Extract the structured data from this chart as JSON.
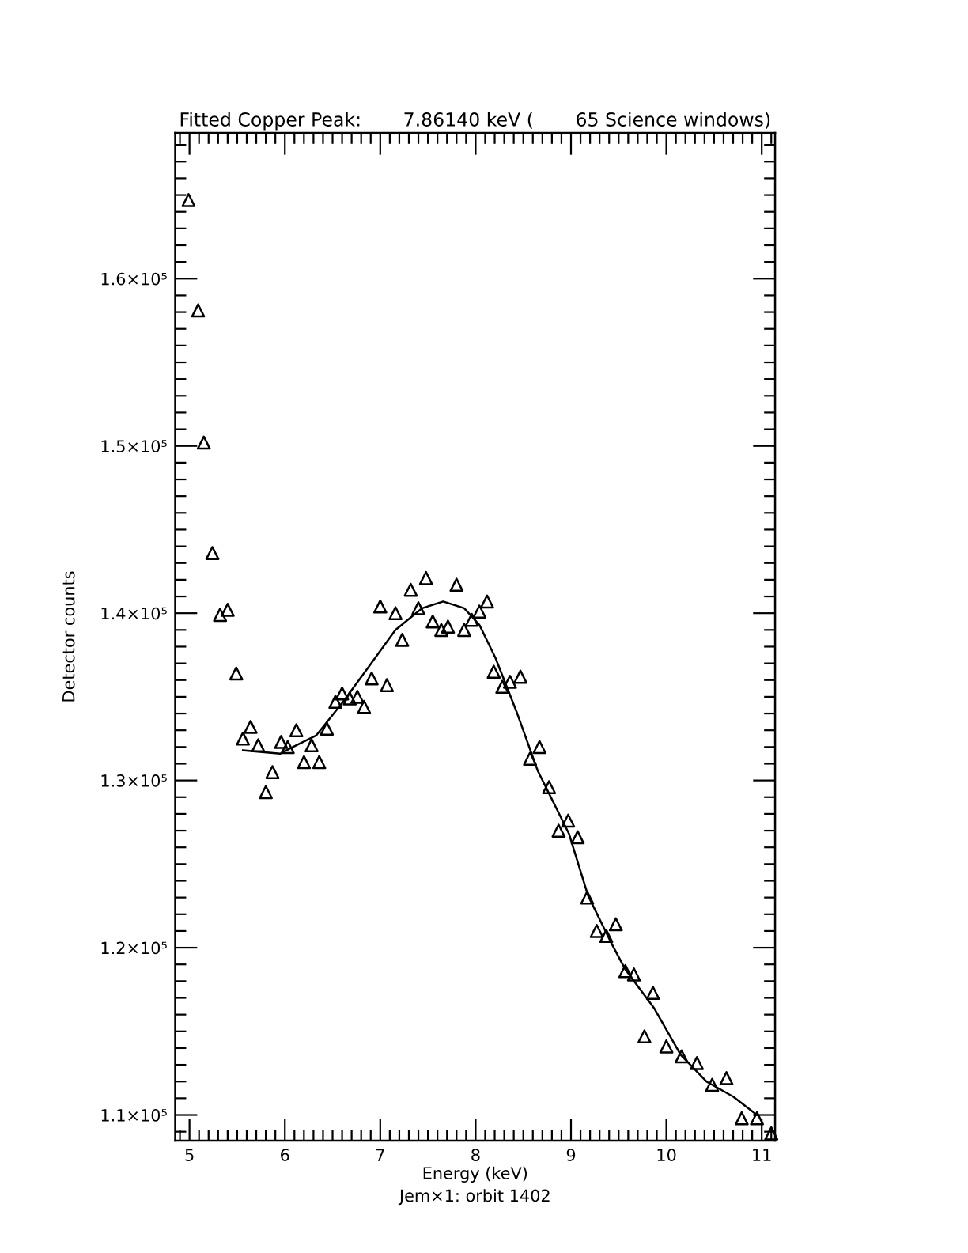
{
  "chart_data": {
    "type": "scatter",
    "title": "Fitted Copper Peak:       7.86140 keV (       65 Science windows)",
    "xlabel": "Energy (keV)",
    "ylabel": "Detector counts",
    "annotations": [
      "Jem×1: orbit 1402"
    ],
    "xlim": [
      4.85,
      11.14
    ],
    "xticks": [
      5,
      6,
      7,
      8,
      9,
      10,
      11
    ],
    "ylim": [
      108460,
      168720
    ],
    "yticks": [
      {
        "value": 110000,
        "label": "1.1×10⁵"
      },
      {
        "value": 120000,
        "label": "1.2×10⁵"
      },
      {
        "value": 130000,
        "label": "1.3×10⁵"
      },
      {
        "value": 140000,
        "label": "1.4×10⁵"
      },
      {
        "value": 150000,
        "label": "1.5×10⁵"
      },
      {
        "value": 160000,
        "label": "1.6×10⁵"
      }
    ],
    "tick_labels": "xy",
    "grid": false,
    "legend": false,
    "series": [
      {
        "marker": "triangle",
        "color": "#000000",
        "x": [
          4.99,
          5.09,
          5.15,
          5.24,
          5.32,
          5.4,
          5.49,
          5.56,
          5.64,
          5.72,
          5.8,
          5.87,
          5.96,
          6.03,
          6.12,
          6.2,
          6.28,
          6.36,
          6.44,
          6.53,
          6.6,
          6.68,
          6.76,
          6.83,
          6.91,
          7.0,
          7.07,
          7.16,
          7.23,
          7.32,
          7.4,
          7.48,
          7.55,
          7.64,
          7.71,
          7.8,
          7.88,
          7.96,
          8.04,
          8.12,
          8.19,
          8.28,
          8.36,
          8.47,
          8.57,
          8.67,
          8.77,
          8.87,
          8.97,
          9.07,
          9.17,
          9.27,
          9.37,
          9.47,
          9.57,
          9.66,
          9.77,
          9.86,
          10.0,
          10.16,
          10.32,
          10.48,
          10.63,
          10.79,
          10.95,
          11.1
        ],
        "values": [
          164700,
          158100,
          150200,
          143600,
          139900,
          140200,
          136400,
          132500,
          133200,
          132100,
          129300,
          130500,
          132300,
          132000,
          133000,
          131100,
          132100,
          131100,
          133100,
          134700,
          135200,
          134900,
          135000,
          134400,
          136100,
          140400,
          135700,
          140000,
          138400,
          141400,
          140300,
          142100,
          139500,
          139000,
          139200,
          141700,
          139000,
          139600,
          140100,
          140700,
          136500,
          135600,
          135900,
          136200,
          131300,
          132000,
          129600,
          127000,
          127600,
          126600,
          123000,
          121000,
          120700,
          121400,
          118600,
          118400,
          114700,
          117300,
          114100,
          113500,
          113100,
          111800,
          112200,
          109800,
          109800,
          108900
        ]
      },
      {
        "type": "line",
        "marker": "none",
        "line_style": "solid",
        "color": "#000000",
        "x": [
          5.56,
          5.95,
          6.05,
          6.33,
          6.61,
          6.88,
          7.16,
          7.44,
          7.66,
          7.88,
          8.04,
          8.21,
          8.43,
          8.65,
          8.98,
          9.18,
          9.43,
          9.57,
          9.87,
          10.15,
          10.42,
          10.7,
          10.95
        ],
        "values": [
          131800,
          131600,
          131900,
          132700,
          134700,
          136800,
          139000,
          140300,
          140700,
          140300,
          139300,
          137300,
          134100,
          130600,
          126800,
          123100,
          120200,
          118700,
          116400,
          113600,
          112000,
          111100,
          110000
        ]
      }
    ]
  }
}
